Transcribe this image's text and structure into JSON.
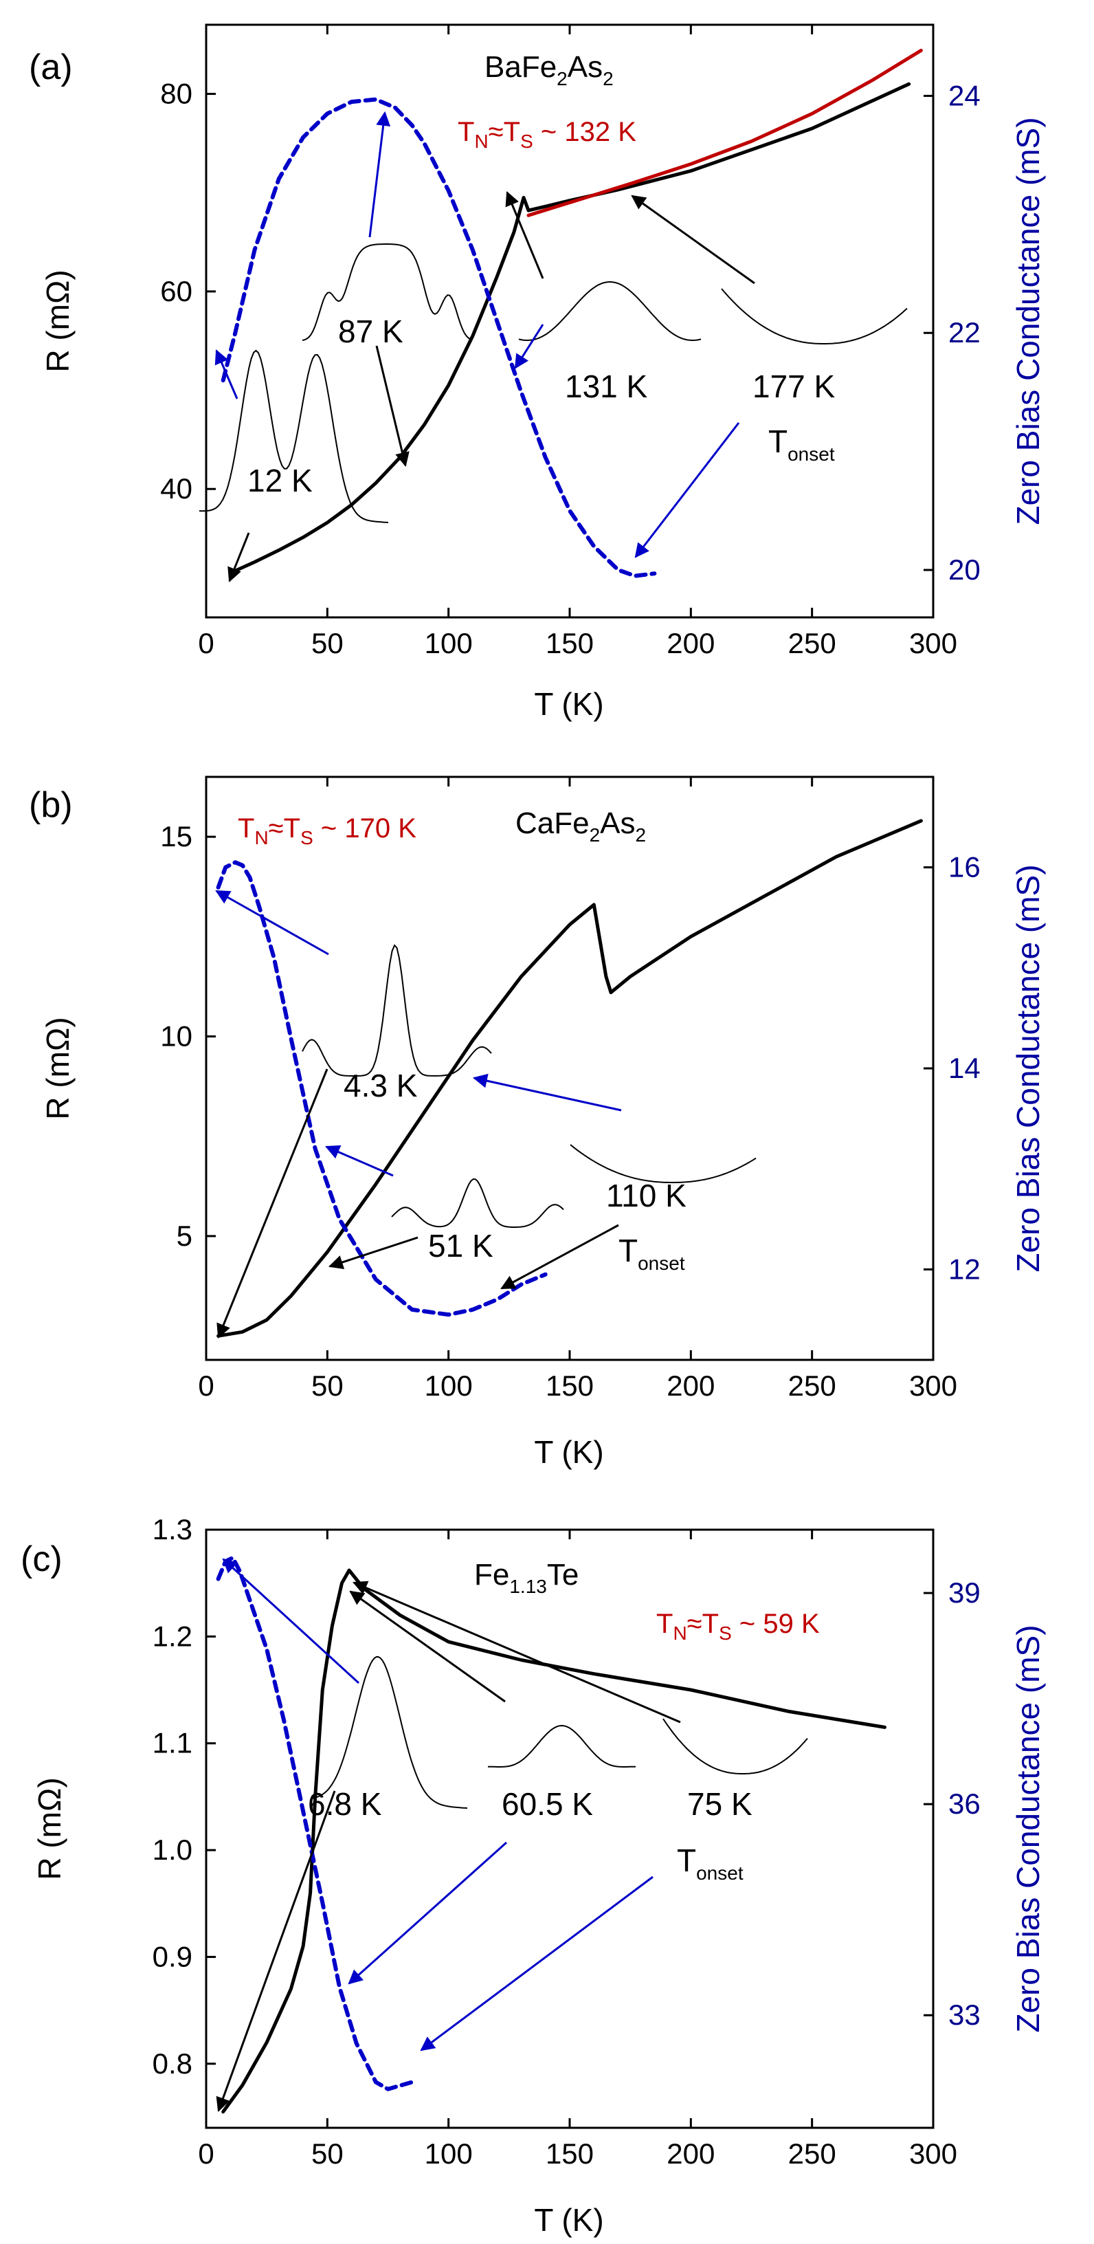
{
  "chart_data": [
    {
      "type": "line",
      "panel_label": "(a)",
      "compound": {
        "base": "BaFe",
        "sub1": "2",
        "mid": "As",
        "sub2": "2"
      },
      "transition": {
        "t1": "T",
        "s1": "N",
        "approx": "≈",
        "t2": "T",
        "s2": "S",
        "rest": " ~  132 K"
      },
      "xlabel": "T (K)",
      "ylabel": "R (mΩ)",
      "ylabel_right": "Zero Bias Conductance (mS)",
      "xlim": [
        0,
        300
      ],
      "ylim": [
        27,
        87
      ],
      "ylim_right": [
        19.6,
        24.6
      ],
      "xticks": [
        "0",
        "50",
        "100",
        "150",
        "200",
        "250",
        "300"
      ],
      "yticks": [
        "40",
        "60",
        "80"
      ],
      "yticks_right": [
        "20",
        "22",
        "24"
      ],
      "series": [
        {
          "name": "R",
          "axis": "left",
          "color": "#000000",
          "style": "solid",
          "x": [
            10,
            20,
            30,
            40,
            50,
            60,
            70,
            80,
            90,
            100,
            110,
            120,
            127,
            131,
            133,
            140,
            150,
            170,
            200,
            250,
            290
          ],
          "y": [
            31.5,
            32.6,
            33.8,
            35.1,
            36.6,
            38.4,
            40.6,
            43.2,
            46.5,
            50.5,
            55.5,
            61.5,
            66,
            69.5,
            68.2,
            68.6,
            69.2,
            70.3,
            72.2,
            76.5,
            81
          ]
        },
        {
          "name": "R fit",
          "axis": "left",
          "color": "#c00000",
          "style": "solid",
          "x": [
            133,
            150,
            175,
            200,
            225,
            250,
            275,
            295
          ],
          "y": [
            67.7,
            69,
            70.9,
            72.9,
            75.2,
            78.0,
            81.4,
            84.4
          ]
        },
        {
          "name": "Zero Bias Conductance",
          "axis": "right",
          "color": "#0000c8",
          "style": "dashed",
          "x": [
            7,
            12,
            20,
            30,
            40,
            50,
            60,
            70,
            78,
            85,
            90,
            100,
            110,
            120,
            130,
            140,
            150,
            160,
            170,
            177,
            185
          ],
          "y": [
            21.6,
            22.0,
            22.7,
            23.3,
            23.65,
            23.85,
            23.95,
            23.97,
            23.9,
            23.75,
            23.6,
            23.2,
            22.7,
            22.1,
            21.5,
            20.95,
            20.5,
            20.2,
            20.0,
            19.95,
            19.97
          ]
        }
      ],
      "insets": [
        {
          "label": "12 K",
          "shape": "double-peak"
        },
        {
          "label": "87 K",
          "shape": "flat-top"
        },
        {
          "label": "131 K",
          "shape": "bump"
        },
        {
          "label": "177 K",
          "shape": "dip"
        }
      ],
      "tonset": {
        "t": "T",
        "sub": "onset"
      }
    },
    {
      "type": "line",
      "panel_label": "(b)",
      "compound": {
        "base": "CaFe",
        "sub1": "2",
        "mid": "As",
        "sub2": "2"
      },
      "transition": {
        "t1": "T",
        "s1": "N",
        "approx": "≈",
        "t2": "T",
        "s2": "S",
        "rest": " ~  170 K"
      },
      "xlabel": "T (K)",
      "ylabel": "R (mΩ)",
      "ylabel_right": "Zero Bias Conductance (mS)",
      "xlim": [
        0,
        300
      ],
      "ylim": [
        1.9,
        16.5
      ],
      "ylim_right": [
        11.1,
        16.9
      ],
      "xticks": [
        "0",
        "50",
        "100",
        "150",
        "200",
        "250",
        "300"
      ],
      "yticks": [
        "5",
        "10",
        "15"
      ],
      "yticks_right": [
        "12",
        "14",
        "16"
      ],
      "series": [
        {
          "name": "R",
          "axis": "left",
          "color": "#000000",
          "style": "solid",
          "x": [
            5,
            15,
            25,
            35,
            50,
            70,
            90,
            110,
            130,
            150,
            160,
            165,
            167,
            175,
            200,
            230,
            260,
            295
          ],
          "y": [
            2.5,
            2.6,
            2.9,
            3.5,
            4.6,
            6.3,
            8.1,
            9.9,
            11.5,
            12.8,
            13.3,
            11.5,
            11.1,
            11.5,
            12.5,
            13.5,
            14.5,
            15.4
          ]
        },
        {
          "name": "Zero Bias Conductance",
          "axis": "right",
          "color": "#0000c8",
          "style": "dashed",
          "x": [
            5,
            8,
            12,
            15,
            18,
            22,
            28,
            35,
            45,
            55,
            70,
            85,
            100,
            110,
            120,
            130,
            140
          ],
          "y": [
            15.8,
            16.0,
            16.05,
            16.02,
            15.9,
            15.6,
            15.1,
            14.3,
            13.2,
            12.5,
            11.9,
            11.6,
            11.55,
            11.6,
            11.7,
            11.85,
            11.95
          ]
        }
      ],
      "insets": [
        {
          "label": "4.3 K",
          "shape": "sharp-peak"
        },
        {
          "label": "51 K",
          "shape": "small-peak"
        },
        {
          "label": "110 K",
          "shape": "dip"
        }
      ],
      "tonset": {
        "t": "T",
        "sub": "onset"
      }
    },
    {
      "type": "line",
      "panel_label": "(c)",
      "compound": {
        "base": "Fe",
        "sub1": "1.13",
        "mid": "Te",
        "sub2": ""
      },
      "transition": {
        "t1": "T",
        "s1": "N",
        "approx": "≈",
        "t2": "T",
        "s2": "S",
        "rest": " ~  59 K"
      },
      "xlabel": "T (K)",
      "ylabel": "R (mΩ)",
      "ylabel_right": "Zero Bias Conductance (mS)",
      "xlim": [
        0,
        300
      ],
      "ylim": [
        0.74,
        1.3
      ],
      "ylim_right": [
        31.4,
        39.9
      ],
      "xticks": [
        "0",
        "50",
        "100",
        "150",
        "200",
        "250",
        "300"
      ],
      "yticks": [
        "0.8",
        "0.9",
        "1.0",
        "1.1",
        "1.2",
        "1.3"
      ],
      "yticks_right": [
        "33",
        "36",
        "39"
      ],
      "series": [
        {
          "name": "R",
          "axis": "left",
          "color": "#000000",
          "style": "solid",
          "x": [
            7,
            15,
            25,
            35,
            40,
            43,
            45,
            48,
            52,
            56,
            59,
            65,
            80,
            100,
            130,
            160,
            200,
            240,
            280
          ],
          "y": [
            0.755,
            0.78,
            0.82,
            0.87,
            0.91,
            0.96,
            1.05,
            1.15,
            1.21,
            1.25,
            1.262,
            1.245,
            1.22,
            1.195,
            1.178,
            1.165,
            1.15,
            1.13,
            1.115
          ]
        },
        {
          "name": "Zero Bias Conductance",
          "axis": "right",
          "color": "#0000c8",
          "style": "dashed",
          "x": [
            5,
            8,
            11,
            14,
            18,
            25,
            32,
            40,
            48,
            55,
            62,
            70,
            75,
            80,
            85
          ],
          "y": [
            39.2,
            39.45,
            39.5,
            39.3,
            38.9,
            38.2,
            37.2,
            35.9,
            34.6,
            33.4,
            32.6,
            32.05,
            31.95,
            32.0,
            32.05
          ]
        }
      ],
      "insets": [
        {
          "label": "6.8 K",
          "shape": "peak"
        },
        {
          "label": "60.5 K",
          "shape": "small-bump"
        },
        {
          "label": "75 K",
          "shape": "dip"
        }
      ],
      "tonset": {
        "t": "T",
        "sub": "onset"
      }
    }
  ]
}
